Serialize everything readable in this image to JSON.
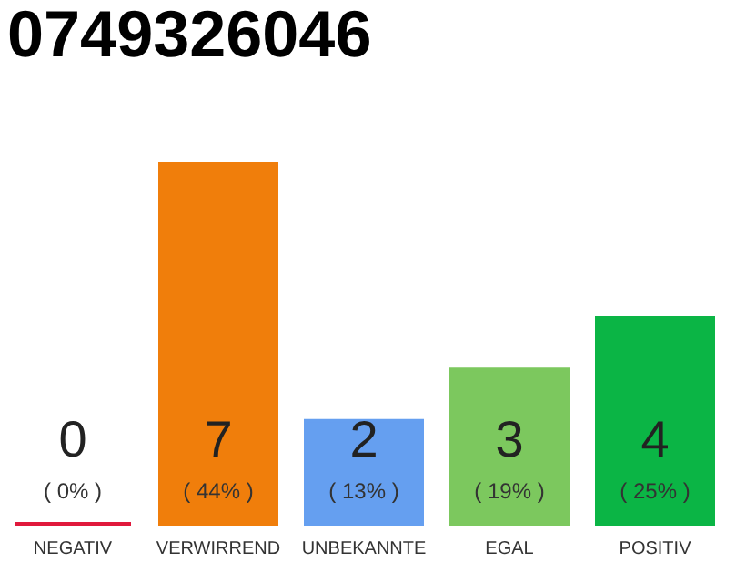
{
  "chart_data": {
    "type": "bar",
    "title": "0749326046",
    "categories": [
      "NEGATIV",
      "VERWIRREND",
      "UNBEKANNTE",
      "EGAL",
      "POSITIV"
    ],
    "values": [
      0,
      7,
      2,
      3,
      4
    ],
    "colors": [
      "#e0193c",
      "#f07e0b",
      "#659ff0",
      "#7cc85e",
      "#0bb545"
    ],
    "data_labels": true,
    "annotations": [
      "( 0% )",
      "( 44% )",
      "( 13% )",
      "( 19% )",
      "( 25% )"
    ]
  }
}
